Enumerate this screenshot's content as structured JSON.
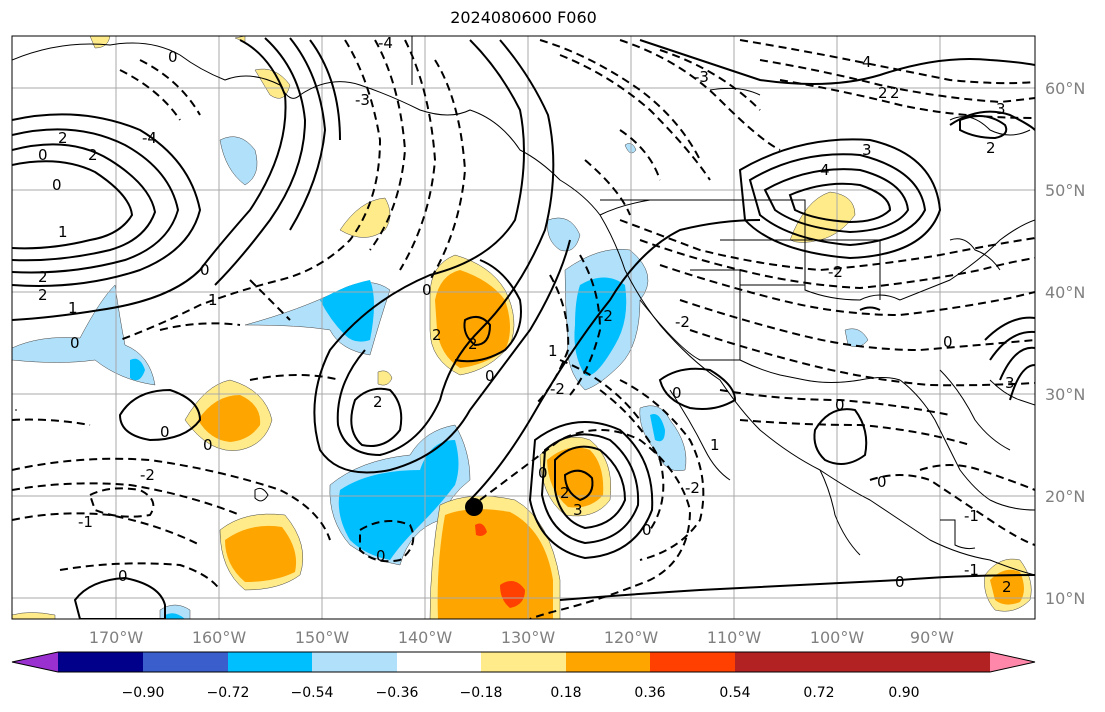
{
  "title": "2024080600 F060",
  "map": {
    "lon_ticks": [
      "170°W",
      "160°W",
      "150°W",
      "140°W",
      "130°W",
      "120°W",
      "110°W",
      "100°W",
      "90°W"
    ],
    "lat_ticks": [
      "60°N",
      "50°N",
      "40°N",
      "30°N",
      "20°N",
      "10°N"
    ],
    "gridlines": true,
    "colorbar": {
      "labels": [
        "−0.90",
        "−0.72",
        "−0.54",
        "−0.36",
        "−0.18",
        "0.18",
        "0.36",
        "0.54",
        "0.72",
        "0.90"
      ],
      "colors": [
        "#9b30d0",
        "#00008b",
        "#3a5fcd",
        "#00bfff",
        "#b0e0fa",
        "#ffffff",
        "#ffeb8a",
        "#ffa500",
        "#ff4000",
        "#b22222",
        "#ff88aa"
      ],
      "extend": "both"
    },
    "contour_labels": [
      "0",
      "-1",
      "-2",
      "1",
      "2",
      "3",
      "4",
      "-3",
      "-4"
    ],
    "marker": "filled-black-circle"
  }
}
